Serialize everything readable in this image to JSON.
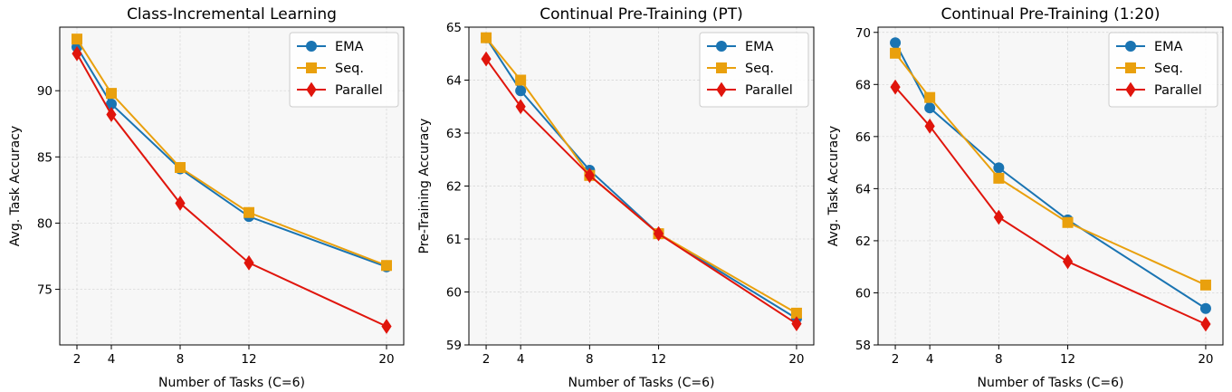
{
  "colors": {
    "EMA": "#1a74b2",
    "Seq.": "#e9a00d",
    "Parallel": "#e0150c",
    "plot_bg": "#f7f7f7",
    "grid": "#d4d4d4",
    "legend_edge": "#cccccc"
  },
  "chart_data": [
    {
      "type": "line",
      "title": "Class-Incremental Learning",
      "xlabel": "Number of Tasks (C=6)",
      "ylabel": "Avg. Task Accuracy",
      "x": [
        2,
        4,
        8,
        12,
        20
      ],
      "xticks": [
        2,
        4,
        8,
        12,
        20
      ],
      "xlim": [
        1,
        21
      ],
      "ylim": [
        70.8,
        94.8
      ],
      "yticks": [
        75,
        80,
        85,
        90
      ],
      "ytick_labels": [
        "75",
        "80",
        "85",
        "90"
      ],
      "grid": true,
      "legend": "top-right",
      "series": [
        {
          "name": "EMA",
          "marker": "circle",
          "values": [
            93.3,
            89.0,
            84.1,
            80.5,
            76.7
          ]
        },
        {
          "name": "Seq.",
          "marker": "square",
          "values": [
            93.9,
            89.8,
            84.2,
            80.8,
            76.8
          ]
        },
        {
          "name": "Parallel",
          "marker": "diamond",
          "values": [
            92.8,
            88.2,
            81.5,
            77.0,
            72.2
          ]
        }
      ]
    },
    {
      "type": "line",
      "title": "Continual Pre-Training (PT)",
      "xlabel": "Number of Tasks (C=6)",
      "ylabel": "Pre-Training Accuracy",
      "x": [
        2,
        4,
        8,
        12,
        20
      ],
      "xticks": [
        2,
        4,
        8,
        12,
        20
      ],
      "xlim": [
        1,
        21
      ],
      "ylim": [
        59,
        65
      ],
      "yticks": [
        59,
        60,
        61,
        62,
        63,
        64,
        65
      ],
      "ytick_labels": [
        "59",
        "60",
        "61",
        "62",
        "63",
        "64",
        "65"
      ],
      "grid": true,
      "legend": "top-right",
      "series": [
        {
          "name": "EMA",
          "marker": "circle",
          "values": [
            64.8,
            63.8,
            62.3,
            61.1,
            59.5
          ]
        },
        {
          "name": "Seq.",
          "marker": "square",
          "values": [
            64.8,
            64.0,
            62.2,
            61.1,
            59.6
          ]
        },
        {
          "name": "Parallel",
          "marker": "diamond",
          "values": [
            64.4,
            63.5,
            62.2,
            61.1,
            59.4
          ]
        }
      ]
    },
    {
      "type": "line",
      "title": "Continual Pre-Training (1:20)",
      "xlabel": "Number of Tasks (C=6)",
      "ylabel": "Avg. Task Accuracy",
      "x": [
        2,
        4,
        8,
        12,
        20
      ],
      "xticks": [
        2,
        4,
        8,
        12,
        20
      ],
      "xlim": [
        1,
        21
      ],
      "ylim": [
        58,
        70.2
      ],
      "yticks": [
        58,
        60,
        62,
        64,
        66,
        68,
        70
      ],
      "ytick_labels": [
        "58",
        "60",
        "62",
        "64",
        "66",
        "68",
        "70"
      ],
      "grid": true,
      "legend": "top-right",
      "series": [
        {
          "name": "EMA",
          "marker": "circle",
          "values": [
            69.6,
            67.1,
            64.8,
            62.8,
            59.4
          ]
        },
        {
          "name": "Seq.",
          "marker": "square",
          "values": [
            69.2,
            67.5,
            64.4,
            62.7,
            60.3
          ]
        },
        {
          "name": "Parallel",
          "marker": "diamond",
          "values": [
            67.9,
            66.4,
            62.9,
            61.2,
            58.8
          ]
        }
      ]
    }
  ]
}
